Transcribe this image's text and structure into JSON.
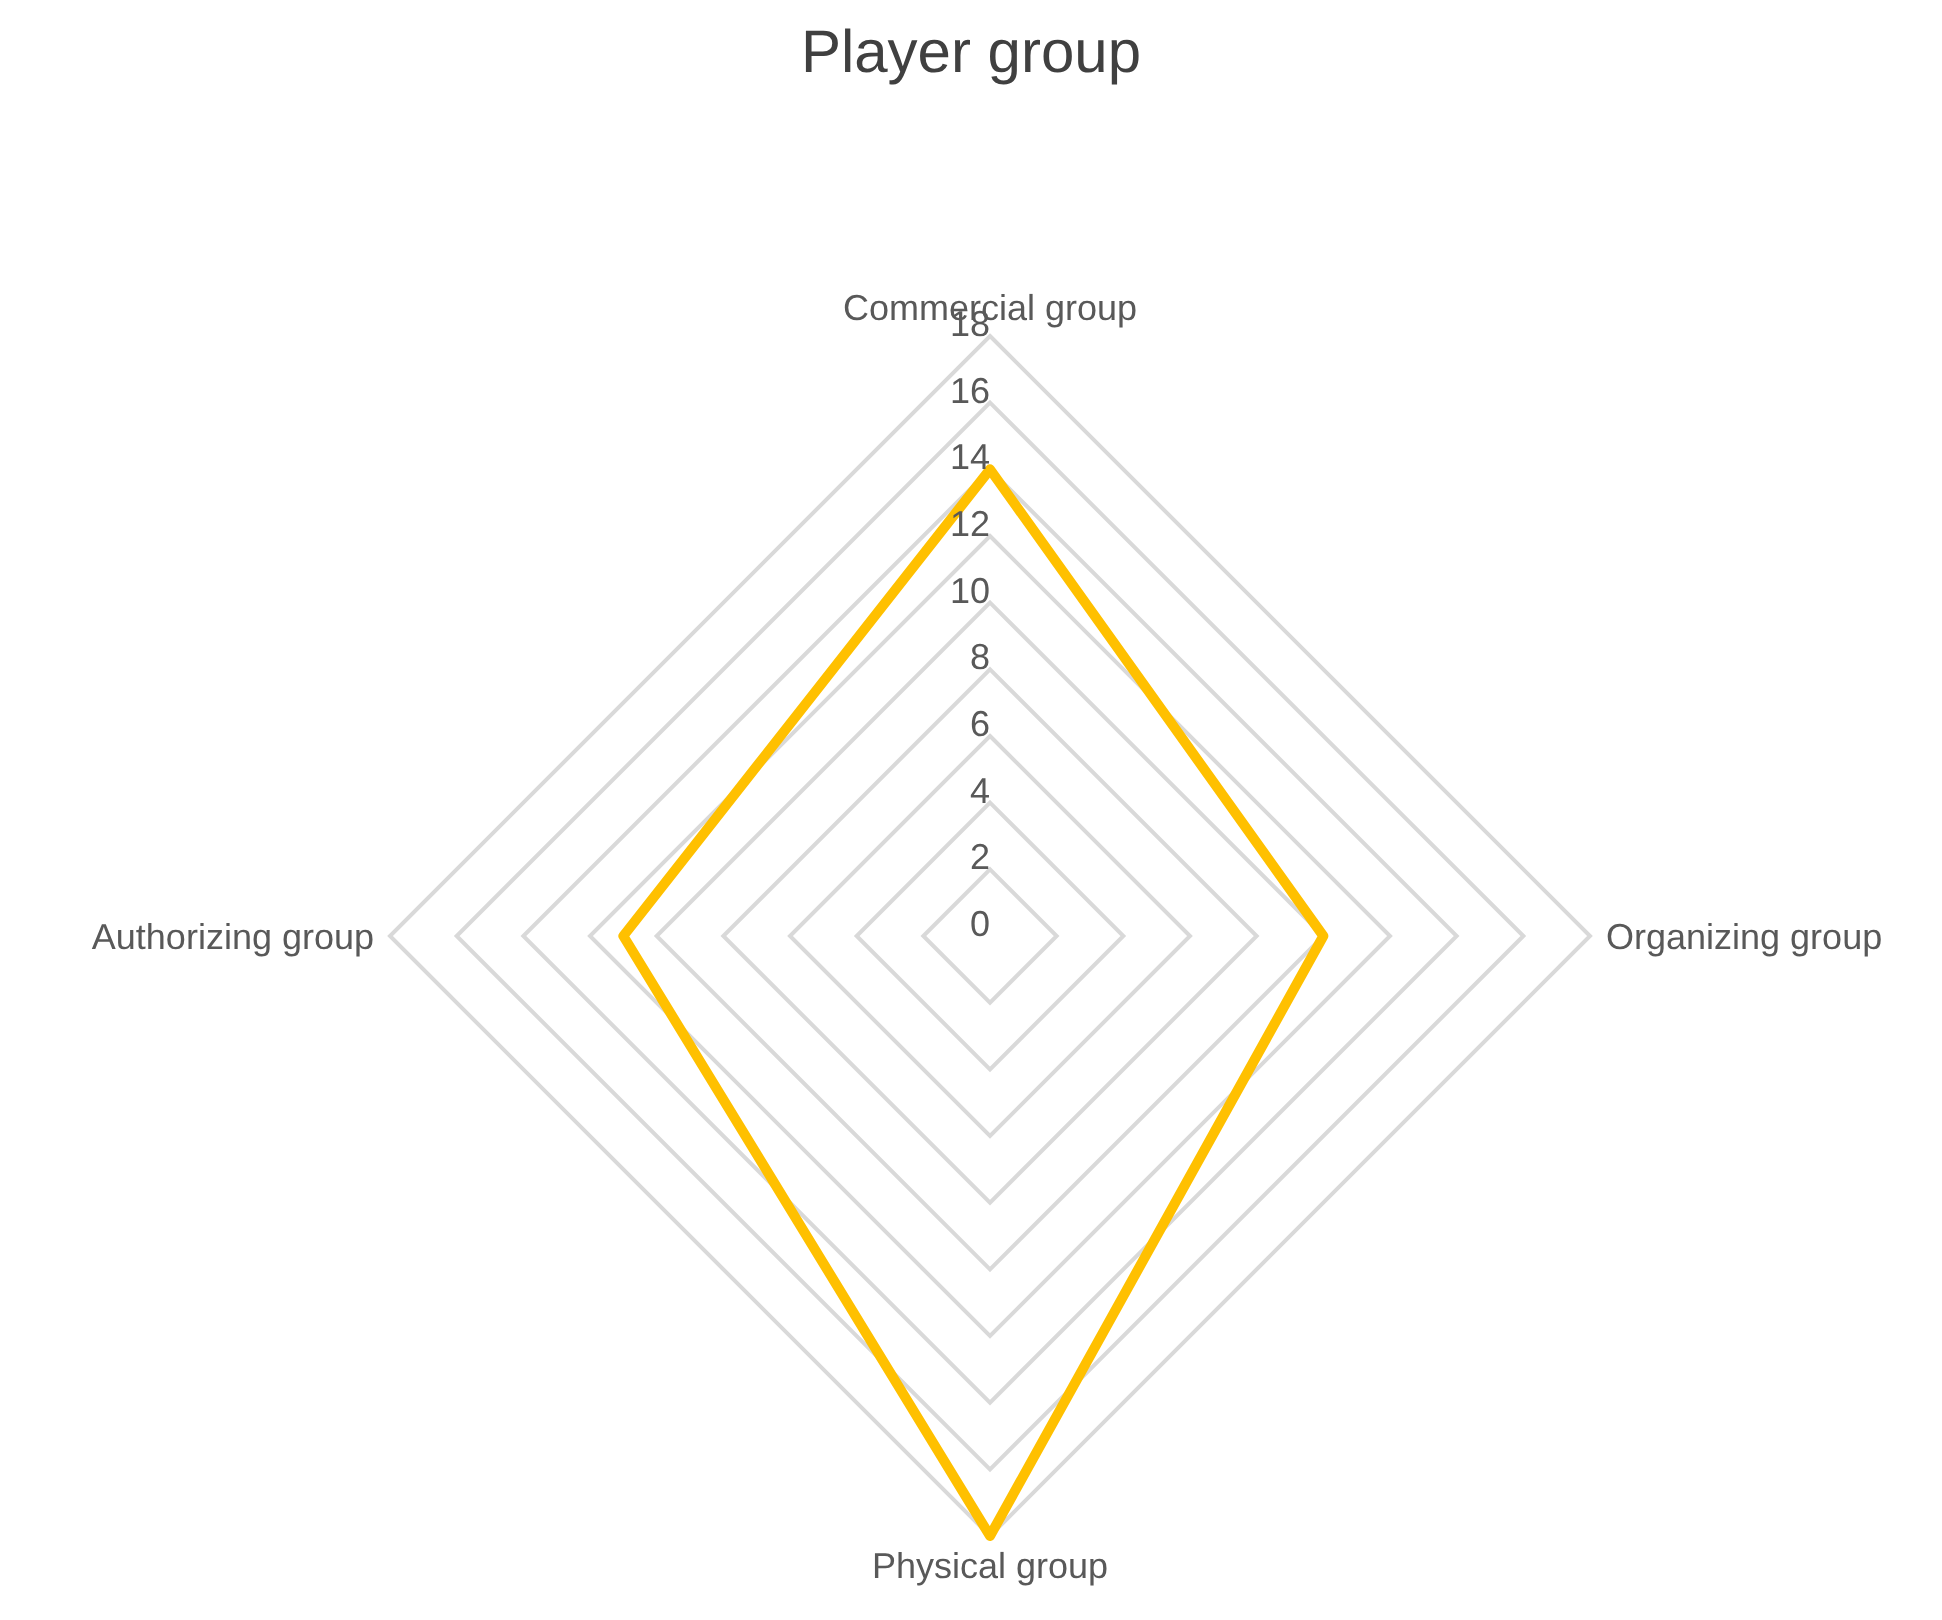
{
  "chart_data": {
    "type": "radar",
    "title": "Player group",
    "categories": [
      "Commercial group",
      "Organizing group",
      "Physical group",
      "Authorizing group"
    ],
    "series": [
      {
        "color": "#ffc000",
        "values": [
          14,
          10,
          18,
          11
        ]
      }
    ],
    "ylim": [
      0,
      18
    ],
    "yticks": [
      0,
      2,
      4,
      6,
      8,
      10,
      12,
      14,
      16,
      18
    ],
    "grid": true,
    "legend": false,
    "marker": "none",
    "line_style": "solid"
  }
}
